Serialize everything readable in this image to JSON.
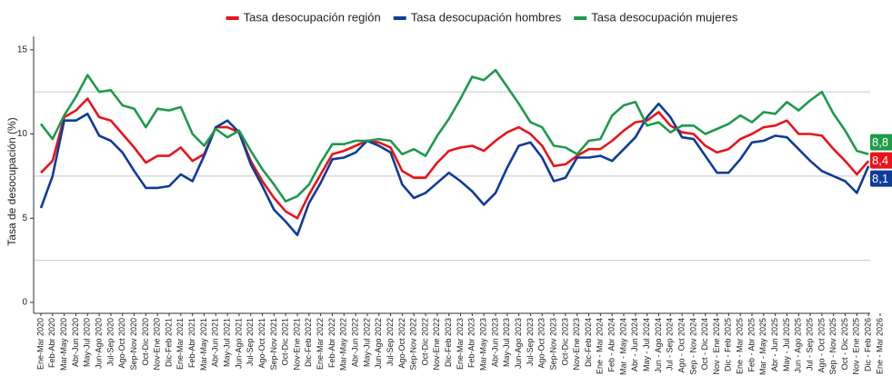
{
  "chart_data": {
    "type": "line",
    "y_label": "Tasa de desocupación (%)",
    "categories": [
      "Ene-Mar 2020",
      "Feb-Abr 2020",
      "Mar-May 2020",
      "Abr-Jun 2020",
      "May-Jul 2020",
      "Jun-Ago 2020",
      "Jul-Sep 2020",
      "Ago-Oct 2020",
      "Sep-Nov 2020",
      "Oct-Dic 2020",
      "Nov-Ene 2020",
      "Dic-Feb 2021",
      "Ene-Mar 2021",
      "Feb-Abr 2021",
      "Mar-May 2021",
      "Abr-Jun 2021",
      "May-Jul 2021",
      "Jun-Ago 2021",
      "Jul-Sep 2021",
      "Ago-Oct 2021",
      "Sep-Nov 2021",
      "Oct-Dic 2021",
      "Nov-Ene 2021",
      "Dic-Feb 2022",
      "Ene-Mar 2022",
      "Feb-Abr 2022",
      "Mar-May 2022",
      "Abr-Jun 2022",
      "May-Jul 2022",
      "Jun-Ago 2022",
      "Jul-Sep 2022",
      "Ago-Oct 2022",
      "Sep-Nov 2022",
      "Oct-Dic 2022",
      "Nov-Ene 2022",
      "Dic-Feb 2023",
      "Ene-Mar 2023",
      "Feb-Abr 2023",
      "Mar-May 2023",
      "Abr-Jun 2023",
      "May-Jul 2023",
      "Jun-Ago 2023",
      "Jul-Sep 2023",
      "Ago-Oct 2023",
      "Sep-Nov 2023",
      "Oct-Dic 2023",
      "Nov-Ene 2023",
      "Dic-Feb 2024",
      "Ene - Mar 2024",
      "Feb - Abr 2024",
      "Mar - May 2024",
      "Abr - Jun 2024",
      "May - Jul 2024",
      "Jun - Ago 2024",
      "Jul - Sep 2024",
      "Ago - Oct 2024",
      "Sep - Nov 2024",
      "Oct - Dic 2024",
      "Nov - Ene 2024",
      "Dic - Feb 2025",
      "Ene - Mar 2025",
      "Feb - Abr 2025",
      "Mar - May 2025",
      "Abr - Jun 2025",
      "May - Jul 2025",
      "Jun - Ago 2025",
      "Jul - Sep 2025",
      "Ago - Oct 2025",
      "Sep - Nov 2025",
      "Oct - Dic 2025",
      "Nov - Ene 2025",
      "Dic - Feb 2026",
      "Ene - Mar 2026"
    ],
    "series": [
      {
        "name": "Tasa desocupación región",
        "color": "#e8141a",
        "values": [
          7.7,
          8.4,
          11.0,
          11.4,
          12.1,
          11.0,
          10.8,
          10.0,
          9.2,
          8.3,
          8.7,
          8.7,
          9.2,
          8.4,
          8.8,
          10.4,
          10.4,
          10.1,
          8.4,
          7.2,
          6.2,
          5.4,
          5.0,
          6.4,
          7.6,
          8.8,
          9.0,
          9.3,
          9.6,
          9.5,
          9.2,
          7.8,
          7.4,
          7.4,
          8.3,
          9.0,
          9.2,
          9.3,
          9.0,
          9.6,
          10.1,
          10.4,
          10.0,
          9.3,
          8.1,
          8.2,
          8.7,
          9.1,
          9.1,
          9.6,
          10.2,
          10.7,
          10.8,
          11.3,
          10.5,
          10.1,
          10.0,
          9.3,
          8.9,
          9.1,
          9.7,
          10.0,
          10.4,
          10.5,
          10.8,
          10.0,
          10.0,
          9.9,
          9.1,
          8.4,
          7.6,
          8.4,
          null
        ],
        "value_labels": [
          null,
          null,
          null,
          null,
          null,
          null,
          null,
          null,
          null,
          null,
          null,
          null,
          null,
          null,
          null,
          null,
          null,
          null,
          null,
          null,
          null,
          null,
          null,
          null,
          null,
          null,
          null,
          null,
          null,
          null,
          null,
          null,
          null,
          null,
          null,
          null,
          null,
          null,
          null,
          null,
          null,
          null,
          null,
          null,
          null,
          null,
          null,
          null,
          null,
          null,
          null,
          null,
          null,
          null,
          null,
          null,
          null,
          null,
          null,
          null,
          null,
          null,
          null,
          null,
          null,
          null,
          null,
          null,
          null,
          null,
          null,
          "8,4",
          null
        ]
      },
      {
        "name": "Tasa desocupación hombres",
        "color": "#0f3c99",
        "values": [
          5.6,
          7.5,
          10.8,
          10.8,
          11.2,
          9.9,
          9.6,
          8.9,
          7.8,
          6.8,
          6.8,
          6.9,
          7.6,
          7.2,
          8.7,
          10.4,
          10.8,
          10.1,
          8.2,
          6.9,
          5.5,
          4.8,
          4.0,
          5.9,
          7.1,
          8.5,
          8.6,
          8.9,
          9.6,
          9.3,
          8.9,
          7.0,
          6.2,
          6.5,
          7.1,
          7.7,
          7.2,
          6.6,
          5.8,
          6.5,
          8.0,
          9.3,
          9.5,
          8.6,
          7.2,
          7.4,
          8.6,
          8.6,
          8.7,
          8.4,
          9.1,
          9.8,
          11.0,
          11.8,
          11.0,
          9.8,
          9.7,
          8.7,
          7.7,
          7.7,
          8.5,
          9.5,
          9.6,
          9.9,
          9.8,
          9.1,
          8.4,
          7.8,
          7.5,
          7.2,
          6.5,
          8.1,
          null
        ],
        "value_labels": [
          null,
          null,
          null,
          null,
          null,
          null,
          null,
          null,
          null,
          null,
          null,
          null,
          null,
          null,
          null,
          null,
          null,
          null,
          null,
          null,
          null,
          null,
          null,
          null,
          null,
          null,
          null,
          null,
          null,
          null,
          null,
          null,
          null,
          null,
          null,
          null,
          null,
          null,
          null,
          null,
          null,
          null,
          null,
          null,
          null,
          null,
          null,
          null,
          null,
          null,
          null,
          null,
          null,
          null,
          null,
          null,
          null,
          null,
          null,
          null,
          null,
          null,
          null,
          null,
          null,
          null,
          null,
          null,
          null,
          null,
          null,
          "8,1",
          null
        ]
      },
      {
        "name": "Tasa desocupación mujeres",
        "color": "#1e9a4a",
        "values": [
          10.6,
          9.7,
          11.1,
          12.2,
          13.5,
          12.5,
          12.6,
          11.7,
          11.5,
          10.4,
          11.5,
          11.4,
          11.6,
          10.0,
          9.3,
          10.3,
          9.8,
          10.2,
          9.0,
          7.9,
          7.0,
          6.0,
          6.3,
          7.0,
          8.3,
          9.4,
          9.4,
          9.6,
          9.6,
          9.7,
          9.6,
          8.8,
          9.1,
          8.7,
          9.9,
          10.9,
          12.1,
          13.4,
          13.2,
          13.8,
          12.8,
          11.8,
          10.7,
          10.4,
          9.3,
          9.2,
          8.8,
          9.6,
          9.7,
          11.1,
          11.7,
          11.9,
          10.5,
          10.7,
          10.1,
          10.5,
          10.5,
          10.0,
          10.3,
          10.6,
          11.1,
          10.7,
          11.3,
          11.2,
          11.9,
          11.4,
          12.0,
          12.5,
          11.2,
          10.2,
          9.0,
          8.8,
          null
        ],
        "value_labels": [
          null,
          null,
          null,
          null,
          null,
          null,
          null,
          null,
          null,
          null,
          null,
          null,
          null,
          null,
          null,
          null,
          null,
          null,
          null,
          null,
          null,
          null,
          null,
          null,
          null,
          null,
          null,
          null,
          null,
          null,
          null,
          null,
          null,
          null,
          null,
          null,
          null,
          null,
          null,
          null,
          null,
          null,
          null,
          null,
          null,
          null,
          null,
          null,
          null,
          null,
          null,
          null,
          null,
          null,
          null,
          null,
          null,
          null,
          null,
          null,
          null,
          null,
          null,
          null,
          null,
          null,
          null,
          null,
          null,
          null,
          null,
          "8,8",
          null
        ]
      }
    ],
    "ylim": [
      -0.65,
      15.8
    ],
    "yticks": [
      0,
      5,
      10,
      15
    ],
    "grid_lines": [
      2.5,
      7.5,
      12.5
    ],
    "legend": "top"
  }
}
